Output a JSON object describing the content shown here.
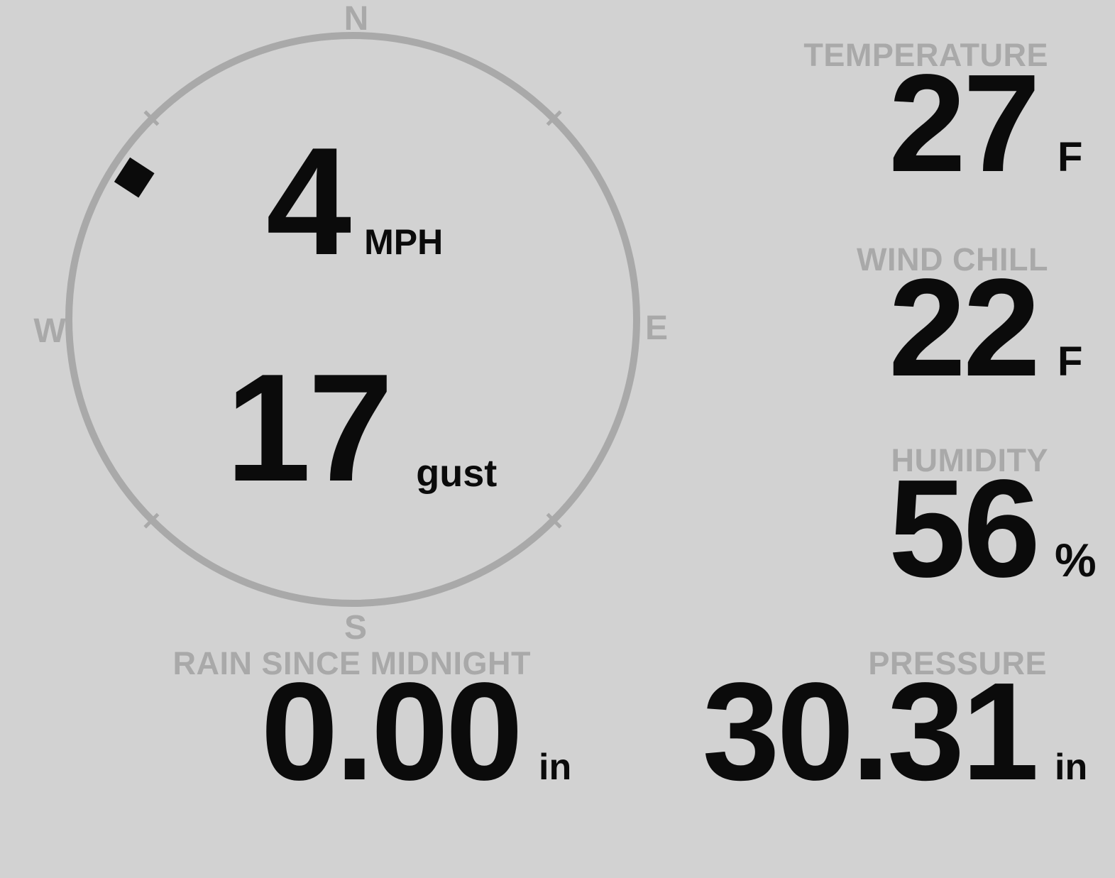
{
  "colors": {
    "background": "#d2d2d2",
    "muted_gray": "#a9a9a9",
    "value_black": "#0b0b0b"
  },
  "compass": {
    "cardinal": {
      "north": "N",
      "east": "E",
      "south": "S",
      "west": "W"
    },
    "wind_direction_deg": 303,
    "speed": {
      "value": "4",
      "unit": "MPH"
    },
    "gust": {
      "value": "17",
      "label": "gust"
    }
  },
  "stats": {
    "temperature": {
      "label": "TEMPERATURE",
      "value": "27",
      "unit": "F"
    },
    "wind_chill": {
      "label": "WIND CHILL",
      "value": "22",
      "unit": "F"
    },
    "humidity": {
      "label": "HUMIDITY",
      "value": "56",
      "unit": "%"
    },
    "rain_since_midnight": {
      "label": "RAIN SINCE MIDNIGHT",
      "value": "0.00",
      "unit": "in"
    },
    "pressure": {
      "label": "PRESSURE",
      "value": "30.31",
      "unit": "in"
    }
  }
}
